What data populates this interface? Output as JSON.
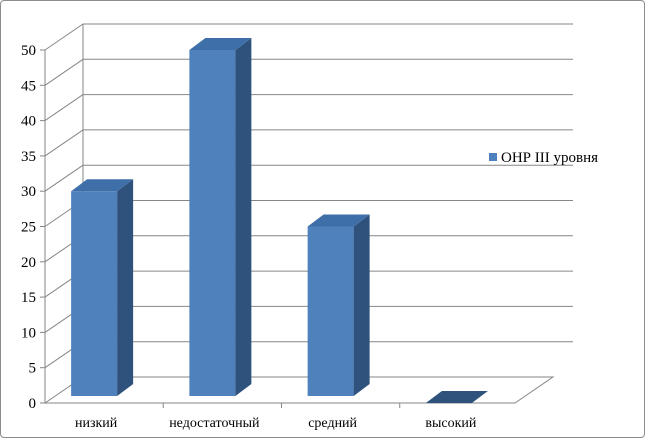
{
  "chart_data": {
    "type": "bar",
    "categories": [
      "низкий",
      "недостаточный",
      "средний",
      "высокий"
    ],
    "series": [
      {
        "name": "ОНР III уровня",
        "values": [
          30,
          50,
          25,
          0
        ]
      }
    ],
    "y_ticks": [
      "0",
      "5",
      "10",
      "15",
      "20",
      "25",
      "30",
      "35",
      "40",
      "45",
      "50"
    ],
    "ylim": [
      0,
      50
    ],
    "grid": true,
    "three_d": true,
    "legend_position": "right",
    "colors": {
      "bar_front": "#4f81bd",
      "bar_top": "#3f6fa8",
      "bar_side": "#2f527d",
      "grid": "#868686"
    }
  }
}
